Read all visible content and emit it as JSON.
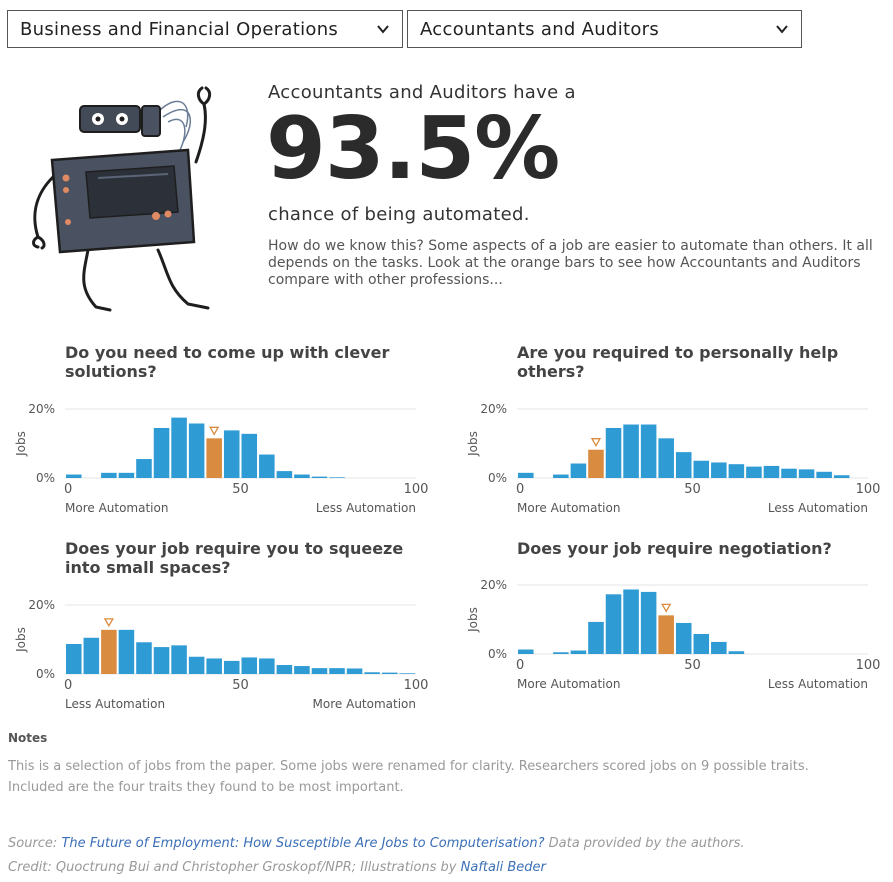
{
  "dropdowns": {
    "category": "Business and Financial Operations",
    "occupation": "Accountants and Auditors"
  },
  "hero": {
    "lead": "Accountants and Auditors have a",
    "percent": "93.5%",
    "tail": "chance of being automated.",
    "description": "How do we know this? Some aspects of a job are easier to automate than others. It all depends on the tasks. Look at the orange bars to see how Accountants and Auditors compare with other professions..."
  },
  "colors": {
    "bar": "#2e9bd5",
    "highlight": "#d98c3f",
    "grid": "#e6e6e6"
  },
  "chart_data": [
    {
      "type": "bar",
      "title": "Do you need to come up with clever solutions?",
      "ylabel": "Jobs",
      "yticks": [
        "20%",
        "0%"
      ],
      "ylim": [
        0,
        20
      ],
      "xticks": [
        "0",
        "50",
        "100"
      ],
      "xlim": [
        0,
        100
      ],
      "left_label": "More Automation",
      "right_label": "Less Automation",
      "bin_width": 5,
      "highlight_index": 8,
      "values": [
        1,
        0,
        1.5,
        1.5,
        5.5,
        14.5,
        17.5,
        15.8,
        11.5,
        13.8,
        12.8,
        6.8,
        2,
        1,
        0.4,
        0.2,
        0,
        0,
        0,
        0
      ]
    },
    {
      "type": "bar",
      "title": "Are you required to personally help others?",
      "ylabel": "Jobs",
      "yticks": [
        "20%",
        "0%"
      ],
      "ylim": [
        0,
        20
      ],
      "xticks": [
        "0",
        "50",
        "100"
      ],
      "xlim": [
        0,
        100
      ],
      "left_label": "More Automation",
      "right_label": "Less Automation",
      "bin_width": 5,
      "highlight_index": 4,
      "values": [
        1.5,
        0,
        1,
        4.2,
        8.2,
        14.5,
        15.5,
        15.5,
        11.5,
        7.5,
        5,
        4.5,
        4,
        3.3,
        3.5,
        2.7,
        2.5,
        1.8,
        0.8,
        0
      ]
    },
    {
      "type": "bar",
      "title": "Does your job require you to squeeze into small spaces?",
      "ylabel": "Jobs",
      "yticks": [
        "20%",
        "0%"
      ],
      "ylim": [
        0,
        20
      ],
      "xticks": [
        "0",
        "50",
        "100"
      ],
      "xlim": [
        0,
        100
      ],
      "left_label": "Less Automation",
      "right_label": "More Automation",
      "bin_width": 5,
      "highlight_index": 2,
      "values": [
        8.7,
        10.5,
        12.8,
        12.8,
        9.2,
        7.8,
        8.3,
        5,
        4.5,
        3.8,
        4.8,
        4.5,
        2.6,
        2.3,
        1.7,
        1.7,
        1.6,
        0.5,
        0.4,
        0.2
      ]
    },
    {
      "type": "bar",
      "title": "Does your job require negotiation?",
      "ylabel": "Jobs",
      "yticks": [
        "20%",
        "0%"
      ],
      "ylim": [
        0,
        20
      ],
      "xticks": [
        "0",
        "50",
        "100"
      ],
      "xlim": [
        0,
        100
      ],
      "left_label": "More Automation",
      "right_label": "Less Automation",
      "bin_width": 5,
      "highlight_index": 8,
      "values": [
        1.3,
        0,
        0.5,
        1,
        9.3,
        17.3,
        18.7,
        18,
        11.2,
        9,
        5.8,
        3.5,
        0.8,
        0,
        0,
        0,
        0,
        0,
        0,
        0
      ]
    }
  ],
  "notes": {
    "heading": "Notes",
    "text": "This is a selection of jobs from the paper. Some jobs were renamed for clarity. Researchers scored jobs on 9 possible traits. Included are the four traits they found to be most important."
  },
  "source": {
    "label": "Source:",
    "link": "The Future of Employment: How Susceptible Are Jobs to Computerisation?",
    "after": "Data provided by the authors."
  },
  "credit": {
    "text": "Credit: Quoctrung Bui and Christopher Groskopf/NPR; Illustrations by",
    "link": "Naftali Beder"
  }
}
